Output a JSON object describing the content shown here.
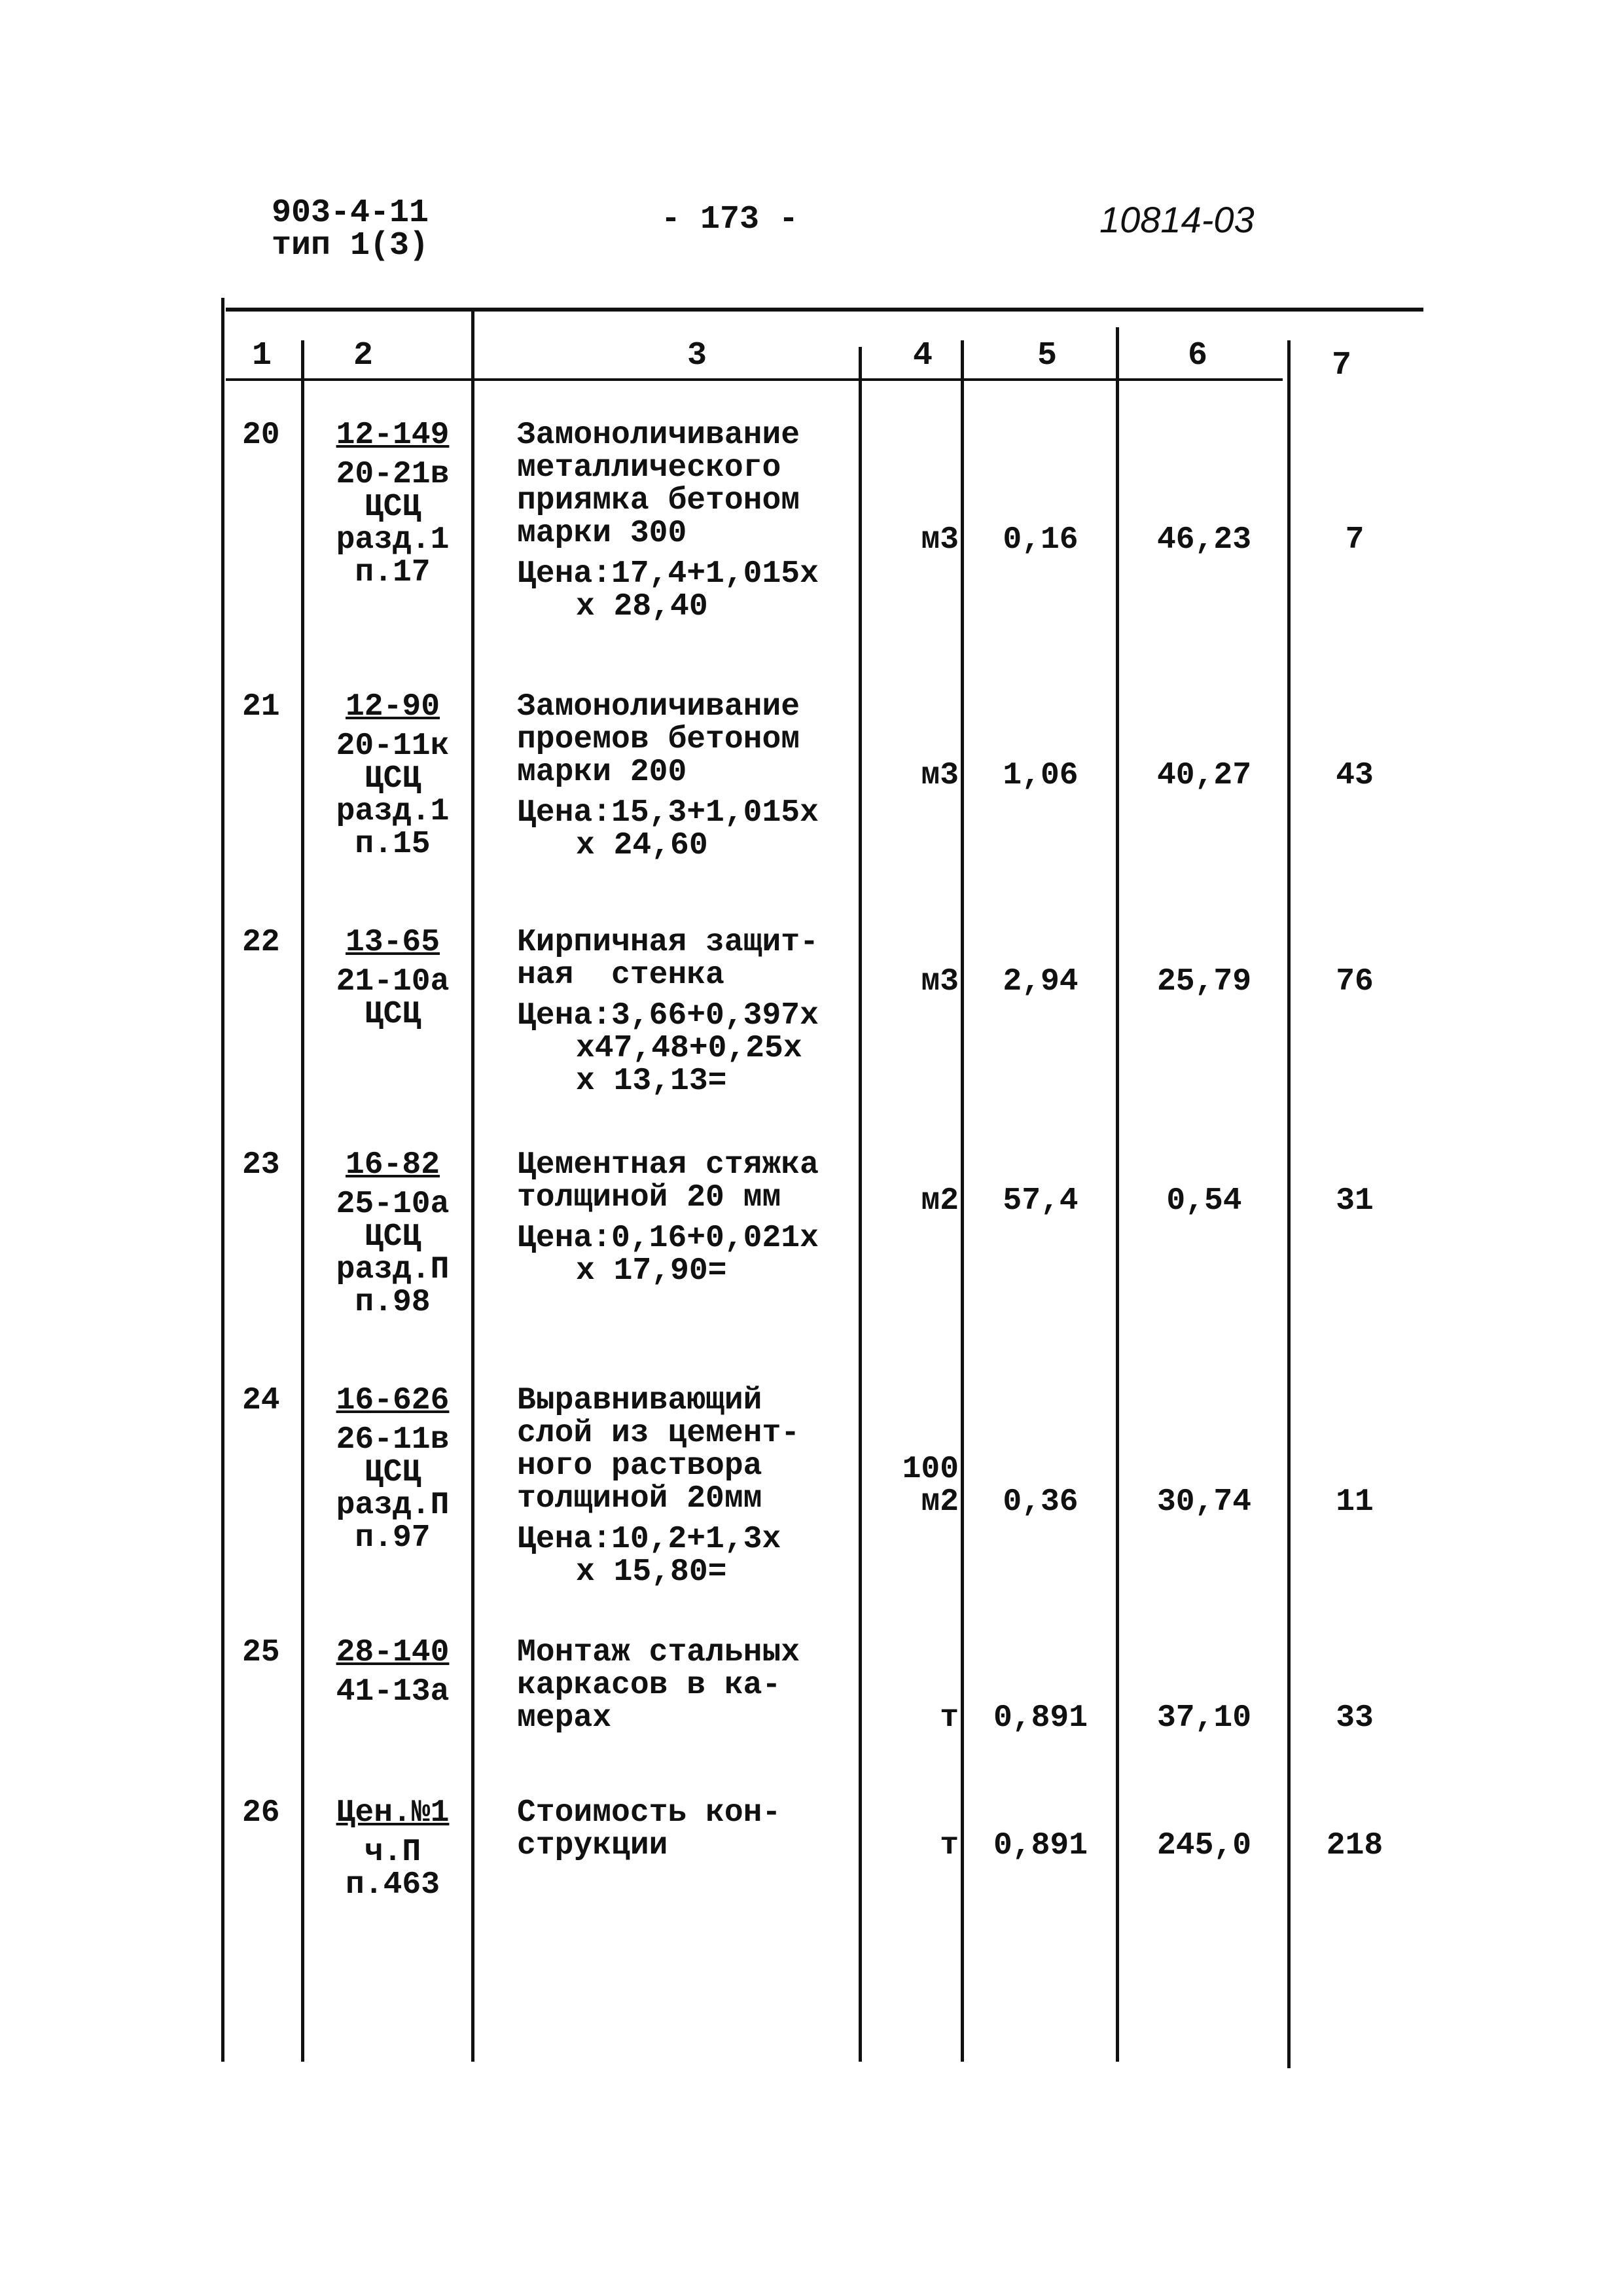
{
  "header": {
    "doc_code": "903-4-11",
    "doc_type": "тип 1(3)",
    "page_number": "- 173 -",
    "handwritten_ref": "10814-03"
  },
  "table": {
    "column_numbers": [
      "1",
      "2",
      "3",
      "4",
      "5",
      "6",
      "7"
    ],
    "rows": [
      {
        "n": "20",
        "code": "12-149",
        "ref": [
          "20-21в",
          "ЦСЦ",
          "разд.1",
          "п.17"
        ],
        "desc": [
          "Замоноличивание",
          "металлического",
          "приямка бетоном",
          "марки 300"
        ],
        "price": [
          "Цена:17,4+1,015х",
          "х 28,40"
        ],
        "unit": "м3",
        "qty": "0,16",
        "unit_price": "46,23",
        "total": "7"
      },
      {
        "n": "21",
        "code": "12-90",
        "ref": [
          "20-11к",
          "ЦСЦ",
          "разд.1",
          "п.15"
        ],
        "desc": [
          "Замоноличивание",
          "проемов бетоном",
          "марки 200"
        ],
        "price": [
          "Цена:15,3+1,015х",
          "х 24,60"
        ],
        "unit": "м3",
        "qty": "1,06",
        "unit_price": "40,27",
        "total": "43"
      },
      {
        "n": "22",
        "code": "13-65",
        "ref": [
          "21-10а",
          "ЦСЦ"
        ],
        "desc": [
          "Кирпичная защит-",
          "ная  стенка"
        ],
        "price": [
          "Цена:3,66+0,397х",
          "х47,48+0,25х",
          "х 13,13="
        ],
        "unit": "м3",
        "qty": "2,94",
        "unit_price": "25,79",
        "total": "76"
      },
      {
        "n": "23",
        "code": "16-82",
        "ref": [
          "25-10а",
          "ЦСЦ",
          "разд.П",
          "п.98"
        ],
        "desc": [
          "Цементная стяжка",
          "толщиной 20 мм"
        ],
        "price": [
          "Цена:0,16+0,021х",
          "х 17,90="
        ],
        "unit": "м2",
        "qty": "57,4",
        "unit_price": "0,54",
        "total": "31"
      },
      {
        "n": "24",
        "code": "16-626",
        "ref": [
          "26-11в",
          "ЦСЦ",
          "разд.П",
          "п.97"
        ],
        "desc": [
          "Выравнивающий",
          "слой из цемент-",
          "ного раствора",
          "толщиной 20мм"
        ],
        "price": [
          "Цена:10,2+1,3х",
          "х 15,80="
        ],
        "unit": "100\nм2",
        "qty": "0,36",
        "unit_price": "30,74",
        "total": "11"
      },
      {
        "n": "25",
        "code": "28-140",
        "ref": [
          "41-13а"
        ],
        "desc": [
          "Монтаж стальных",
          "каркасов в ка-",
          "мерах"
        ],
        "price": [],
        "unit": "т",
        "qty": "0,891",
        "unit_price": "37,10",
        "total": "33"
      },
      {
        "n": "26",
        "code": "Цен.№1",
        "ref": [
          "ч.П",
          "п.463"
        ],
        "desc": [
          "Стоимость кон-",
          "струкции"
        ],
        "price": [],
        "unit": "т",
        "qty": "0,891",
        "unit_price": "245,0",
        "total": "218"
      }
    ]
  }
}
